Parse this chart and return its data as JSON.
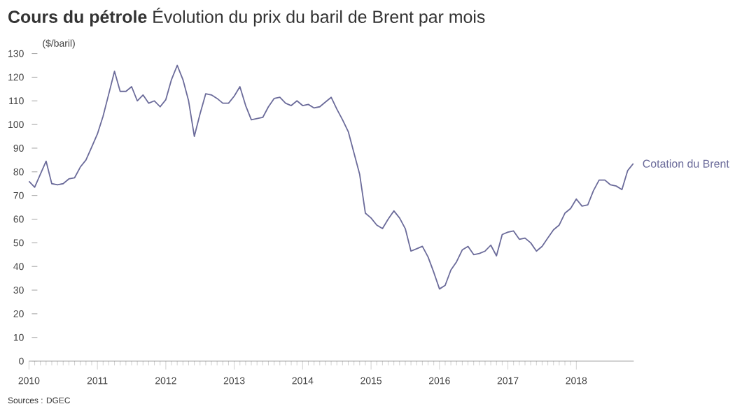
{
  "chart_data": {
    "type": "line",
    "title": "**Cours du pétrole** Évolution du prix du baril de Brent par mois",
    "ylabel": "($/baril)",
    "annotations": [
      "Sources : DGEC"
    ],
    "x": [
      2010.0,
      2010.083,
      2010.167,
      2010.25,
      2010.333,
      2010.417,
      2010.5,
      2010.583,
      2010.667,
      2010.75,
      2010.833,
      2010.917,
      2011.0,
      2011.083,
      2011.167,
      2011.25,
      2011.333,
      2011.417,
      2011.5,
      2011.583,
      2011.667,
      2011.75,
      2011.833,
      2011.917,
      2012.0,
      2012.083,
      2012.167,
      2012.25,
      2012.333,
      2012.417,
      2012.5,
      2012.583,
      2012.667,
      2012.75,
      2012.833,
      2012.917,
      2013.0,
      2013.083,
      2013.167,
      2013.25,
      2013.333,
      2013.417,
      2013.5,
      2013.583,
      2013.667,
      2013.75,
      2013.833,
      2013.917,
      2014.0,
      2014.083,
      2014.167,
      2014.25,
      2014.333,
      2014.417,
      2014.5,
      2014.583,
      2014.667,
      2014.75,
      2014.833,
      2014.917,
      2015.0,
      2015.083,
      2015.167,
      2015.25,
      2015.333,
      2015.417,
      2015.5,
      2015.583,
      2015.667,
      2015.75,
      2015.833,
      2015.917,
      2016.0,
      2016.083,
      2016.167,
      2016.25,
      2016.333,
      2016.417,
      2016.5,
      2016.583,
      2016.667,
      2016.75,
      2016.833,
      2016.917,
      2017.0,
      2017.083,
      2017.167,
      2017.25,
      2017.333,
      2017.417,
      2017.5,
      2017.583,
      2017.667,
      2017.75,
      2017.833,
      2017.917,
      2018.0,
      2018.083,
      2018.167,
      2018.25,
      2018.333,
      2018.417,
      2018.5,
      2018.583,
      2018.667,
      2018.75,
      2018.833
    ],
    "series": [
      {
        "name": "Cotation du Brent",
        "color": "#6b6b9a",
        "values": [
          76,
          73.5,
          79,
          84.5,
          75,
          74.5,
          75,
          77,
          77.5,
          82,
          85,
          90.5,
          96,
          103.5,
          113,
          122.5,
          114,
          114,
          116,
          110,
          112.5,
          109,
          110,
          107.5,
          110.5,
          119,
          125,
          119,
          110,
          95,
          104.5,
          113,
          112.5,
          111,
          109,
          109,
          112,
          116,
          108,
          102,
          102.5,
          103,
          107.5,
          111,
          111.5,
          109,
          108,
          110,
          108,
          108.5,
          107,
          107.5,
          109.5,
          111.5,
          106.5,
          102,
          97,
          88,
          79,
          62.5,
          60.5,
          57.5,
          56,
          60,
          63.5,
          60.5,
          56,
          46.5,
          47.5,
          48.5,
          44,
          37.5,
          30.5,
          32,
          38.5,
          42,
          47,
          48.5,
          45,
          45.5,
          46.5,
          49,
          44.5,
          53.5,
          54.5,
          55,
          51.5,
          52,
          50,
          46.5,
          48.5,
          52,
          55.5,
          57.5,
          62.5,
          64.5,
          68.5,
          65.5,
          66,
          72,
          76.5,
          76.5,
          74.5,
          74,
          72.5,
          80.5,
          83.5
        ]
      }
    ],
    "xlim": [
      2010,
      2018.84
    ],
    "xticks": [
      2010,
      2011,
      2012,
      2013,
      2014,
      2015,
      2016,
      2017,
      2018
    ],
    "ylim": [
      0,
      130
    ],
    "yticks": [
      0,
      10,
      20,
      30,
      40,
      50,
      60,
      70,
      80,
      90,
      100,
      110,
      120,
      130
    ],
    "grid": false,
    "legend": false,
    "marker": "none",
    "line_style": "solid"
  }
}
